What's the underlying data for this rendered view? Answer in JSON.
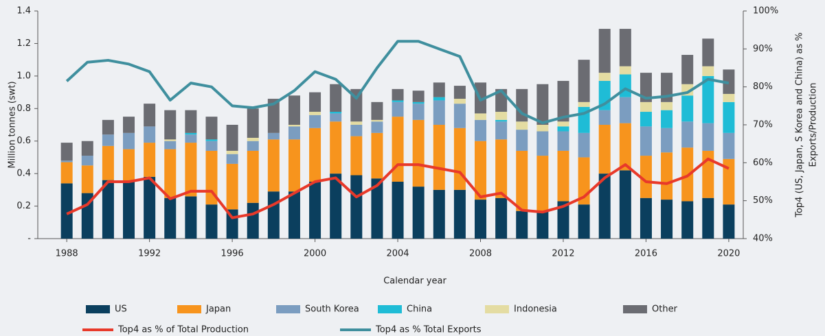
{
  "chart_data": {
    "type": "bar",
    "x_label": "Calendar year",
    "y_label": "Million tonnes (swt)",
    "y2_label": [
      "Top4 (US, Japan, S Korea and China) as %",
      "Exports/Production"
    ],
    "x": [
      1988,
      1989,
      1990,
      1991,
      1992,
      1993,
      1994,
      1995,
      1996,
      1997,
      1998,
      1999,
      2000,
      2001,
      2002,
      2003,
      2004,
      2005,
      2006,
      2007,
      2008,
      2009,
      2010,
      2011,
      2012,
      2013,
      2014,
      2015,
      2016,
      2017,
      2018,
      2019,
      2020
    ],
    "xlim": [
      1986.6,
      2020.7
    ],
    "xticks": [
      1988,
      1992,
      1996,
      2000,
      2004,
      2008,
      2012,
      2016,
      2020
    ],
    "ylim": [
      0,
      1.4
    ],
    "yticks": [
      {
        "value": 0,
        "label": "-"
      },
      0.2,
      0.4,
      0.6,
      0.8,
      {
        "value": 1,
        "label": "1.0"
      },
      1.2,
      1.4
    ],
    "y2lim": [
      40,
      100
    ],
    "y2ticks": [
      {
        "value": 40,
        "label": "40%"
      },
      {
        "value": 50,
        "label": "50%"
      },
      {
        "value": 60,
        "label": "60%"
      },
      {
        "value": 70,
        "label": "70%"
      },
      {
        "value": 80,
        "label": "80%"
      },
      {
        "value": 90,
        "label": "90%"
      },
      {
        "value": 100,
        "label": "100%"
      }
    ],
    "series": [
      {
        "name": "US",
        "color": "#0b3f5e",
        "values": [
          0.34,
          0.28,
          0.36,
          0.35,
          0.38,
          0.25,
          0.26,
          0.21,
          0.18,
          0.22,
          0.29,
          0.29,
          0.35,
          0.4,
          0.39,
          0.37,
          0.35,
          0.32,
          0.3,
          0.3,
          0.24,
          0.25,
          0.17,
          0.17,
          0.23,
          0.21,
          0.4,
          0.42,
          0.25,
          0.24,
          0.23,
          0.25,
          0.21
        ]
      },
      {
        "name": "Japan",
        "color": "#f7941d",
        "values": [
          0.13,
          0.17,
          0.21,
          0.2,
          0.21,
          0.3,
          0.33,
          0.33,
          0.28,
          0.32,
          0.32,
          0.32,
          0.33,
          0.32,
          0.24,
          0.28,
          0.4,
          0.41,
          0.4,
          0.38,
          0.36,
          0.36,
          0.37,
          0.34,
          0.31,
          0.29,
          0.3,
          0.29,
          0.26,
          0.29,
          0.33,
          0.29,
          0.28
        ]
      },
      {
        "name": "South Korea",
        "color": "#7b9dc0",
        "values": [
          0.01,
          0.06,
          0.07,
          0.1,
          0.1,
          0.05,
          0.05,
          0.06,
          0.06,
          0.06,
          0.04,
          0.08,
          0.08,
          0.05,
          0.07,
          0.07,
          0.09,
          0.1,
          0.15,
          0.15,
          0.13,
          0.11,
          0.13,
          0.15,
          0.12,
          0.15,
          0.09,
          0.16,
          0.18,
          0.15,
          0.16,
          0.17,
          0.16
        ]
      },
      {
        "name": "China",
        "color": "#1fbcd6",
        "values": [
          0,
          0,
          0,
          0,
          0,
          0,
          0.01,
          0.01,
          0,
          0,
          0,
          0,
          0,
          0.01,
          0,
          0,
          0.01,
          0.01,
          0.02,
          0,
          0,
          0.01,
          0,
          0,
          0.03,
          0.16,
          0.18,
          0.14,
          0.09,
          0.11,
          0.16,
          0.29,
          0.19
        ]
      },
      {
        "name": "Indonesia",
        "color": "#e4dca2",
        "values": [
          0,
          0,
          0,
          0,
          0,
          0.01,
          0,
          0,
          0.02,
          0.02,
          0,
          0.01,
          0.02,
          0,
          0.02,
          0.01,
          0,
          0,
          0,
          0.03,
          0.04,
          0.05,
          0.05,
          0.04,
          0.03,
          0.03,
          0.05,
          0.05,
          0.06,
          0.05,
          0.07,
          0.06,
          0.05
        ]
      },
      {
        "name": "Other",
        "color": "#6b6c72",
        "values": [
          0.11,
          0.09,
          0.09,
          0.1,
          0.14,
          0.18,
          0.14,
          0.14,
          0.16,
          0.18,
          0.21,
          0.18,
          0.12,
          0.17,
          0.2,
          0.11,
          0.07,
          0.07,
          0.09,
          0.08,
          0.19,
          0.14,
          0.2,
          0.25,
          0.25,
          0.26,
          0.27,
          0.23,
          0.18,
          0.18,
          0.18,
          0.17,
          0.15
        ]
      },
      {
        "name": "Top4 as % of Total Production",
        "type": "line",
        "axis": "y2",
        "color": "#e8392a",
        "values": [
          46.5,
          49,
          55,
          55,
          56,
          50.5,
          52.5,
          52.5,
          45.5,
          46.5,
          49,
          52,
          55,
          56,
          51,
          54,
          59.5,
          59.5,
          58.5,
          57.5,
          51,
          52,
          47.5,
          47,
          48.5,
          51,
          56,
          59.5,
          55,
          54.5,
          56.5,
          61,
          58.5
        ]
      },
      {
        "name": "Top4 as % Total Exports",
        "type": "line",
        "axis": "y2",
        "color": "#3f8f9e",
        "values": [
          81.5,
          86.5,
          87,
          86,
          84,
          76.5,
          81,
          80,
          75,
          74.5,
          75.5,
          79,
          84,
          82,
          77,
          85,
          92,
          92,
          90,
          88,
          76.5,
          79,
          73,
          70.5,
          72,
          73,
          75.5,
          79.5,
          77,
          77.5,
          78.5,
          82,
          81
        ]
      }
    ]
  }
}
